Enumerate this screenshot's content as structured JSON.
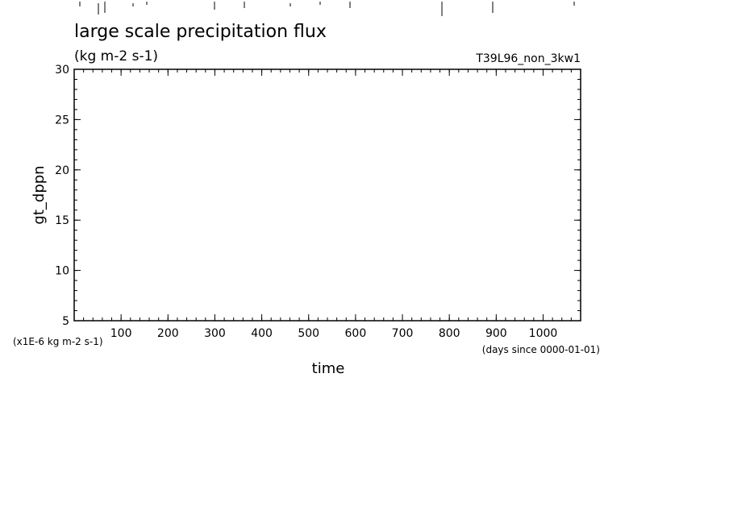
{
  "chart_data": {
    "type": "line",
    "title": "large scale precipitation flux",
    "subtitle": "(kg m-2 s-1)",
    "annotation": "T39L96_non_3kw1",
    "y_label": "gt_dppn",
    "y_unit": "(x1E-6 kg m-2 s-1)",
    "x_label": "time",
    "x_unit": "(days since 0000-01-01)",
    "x": [],
    "series": [],
    "xlim": [
      0,
      1080
    ],
    "xticks": [
      100,
      200,
      300,
      400,
      500,
      600,
      700,
      800,
      900,
      1000
    ],
    "ylim": [
      5,
      30
    ],
    "yticks": [
      5,
      10,
      15,
      20,
      25,
      30
    ],
    "grid": false
  }
}
